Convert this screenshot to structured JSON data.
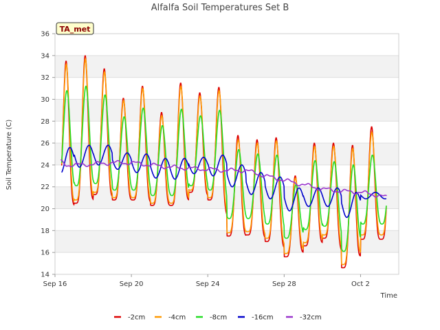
{
  "chart_data": {
    "type": "line",
    "title": "Alfalfa Soil Temperatures Set B",
    "xlabel": "Time",
    "ylabel": "Soil Temperature (C)",
    "ylim": [
      14,
      36
    ],
    "yticks": [
      14,
      16,
      18,
      20,
      22,
      24,
      26,
      28,
      30,
      32,
      34,
      36
    ],
    "xlim": [
      "Sep 16",
      "Oct 4"
    ],
    "xticks": [
      "Sep 16",
      "Sep 20",
      "Sep 24",
      "Sep 28",
      "Oct 2"
    ],
    "grid": true,
    "legend_position": "bottom",
    "badge": "TA_met",
    "series": [
      {
        "name": "-2cm",
        "color": "#dd0000",
        "daily_max": [
          33.5,
          34.0,
          32.8,
          30.1,
          31.2,
          28.8,
          31.5,
          30.6,
          31.1,
          26.7,
          26.3,
          26.5,
          23.0,
          26.0,
          26.0,
          25.8,
          27.5
        ],
        "daily_min": [
          20.2,
          20.5,
          21.3,
          20.8,
          20.8,
          20.3,
          20.3,
          21.5,
          20.8,
          17.5,
          17.6,
          17.0,
          15.6,
          16.6,
          17.3,
          14.6,
          17.2
        ]
      },
      {
        "name": "-4cm",
        "color": "#ff9900",
        "daily_max": [
          33.2,
          33.7,
          32.5,
          29.9,
          31.0,
          28.5,
          31.2,
          30.3,
          30.8,
          26.3,
          26.0,
          26.2,
          22.8,
          25.7,
          25.7,
          25.5,
          27.0
        ],
        "daily_min": [
          20.5,
          20.8,
          21.5,
          21.0,
          21.0,
          20.5,
          20.5,
          21.7,
          21.0,
          17.8,
          17.9,
          17.3,
          15.9,
          16.9,
          17.6,
          14.9,
          17.6
        ]
      },
      {
        "name": "-8cm",
        "color": "#22dd22",
        "daily_max": [
          30.8,
          31.2,
          30.4,
          28.4,
          29.2,
          27.6,
          29.1,
          28.5,
          29.0,
          25.4,
          25.0,
          24.9,
          22.2,
          24.4,
          24.3,
          24.0,
          24.9
        ],
        "daily_min": [
          21.8,
          22.1,
          22.3,
          21.7,
          21.7,
          21.2,
          21.2,
          22.1,
          21.7,
          19.1,
          19.1,
          18.6,
          17.3,
          18.1,
          18.4,
          16.1,
          18.6
        ]
      },
      {
        "name": "-16cm",
        "color": "#0000cc",
        "daily_max": [
          25.6,
          25.8,
          25.8,
          25.1,
          25.0,
          24.6,
          24.6,
          24.7,
          24.9,
          24.0,
          23.3,
          22.9,
          21.9,
          21.9,
          21.9,
          21.5,
          21.5
        ],
        "daily_min": [
          23.2,
          23.8,
          24.0,
          23.6,
          23.3,
          22.8,
          22.7,
          23.2,
          23.0,
          22.0,
          21.3,
          20.9,
          19.8,
          20.2,
          20.2,
          19.2,
          20.9
        ]
      },
      {
        "name": "-32cm",
        "color": "#9933cc",
        "start": [
          17,
          24.3
        ],
        "trend": [
          [
            16.3,
            24.3
          ],
          [
            16.6,
            24.0
          ],
          [
            17.3,
            24.0
          ],
          [
            19,
            24.2
          ],
          [
            20,
            24.2
          ],
          [
            21,
            24.0
          ],
          [
            22,
            23.8
          ],
          [
            23,
            23.7
          ],
          [
            24,
            23.6
          ],
          [
            25,
            23.5
          ],
          [
            26,
            23.5
          ],
          [
            27,
            23.0
          ],
          [
            28,
            22.6
          ],
          [
            29,
            22.2
          ],
          [
            30,
            21.8
          ],
          [
            31,
            21.6
          ],
          [
            32,
            21.5
          ],
          [
            33,
            21.2
          ],
          [
            33.4,
            21.0
          ]
        ]
      }
    ]
  }
}
